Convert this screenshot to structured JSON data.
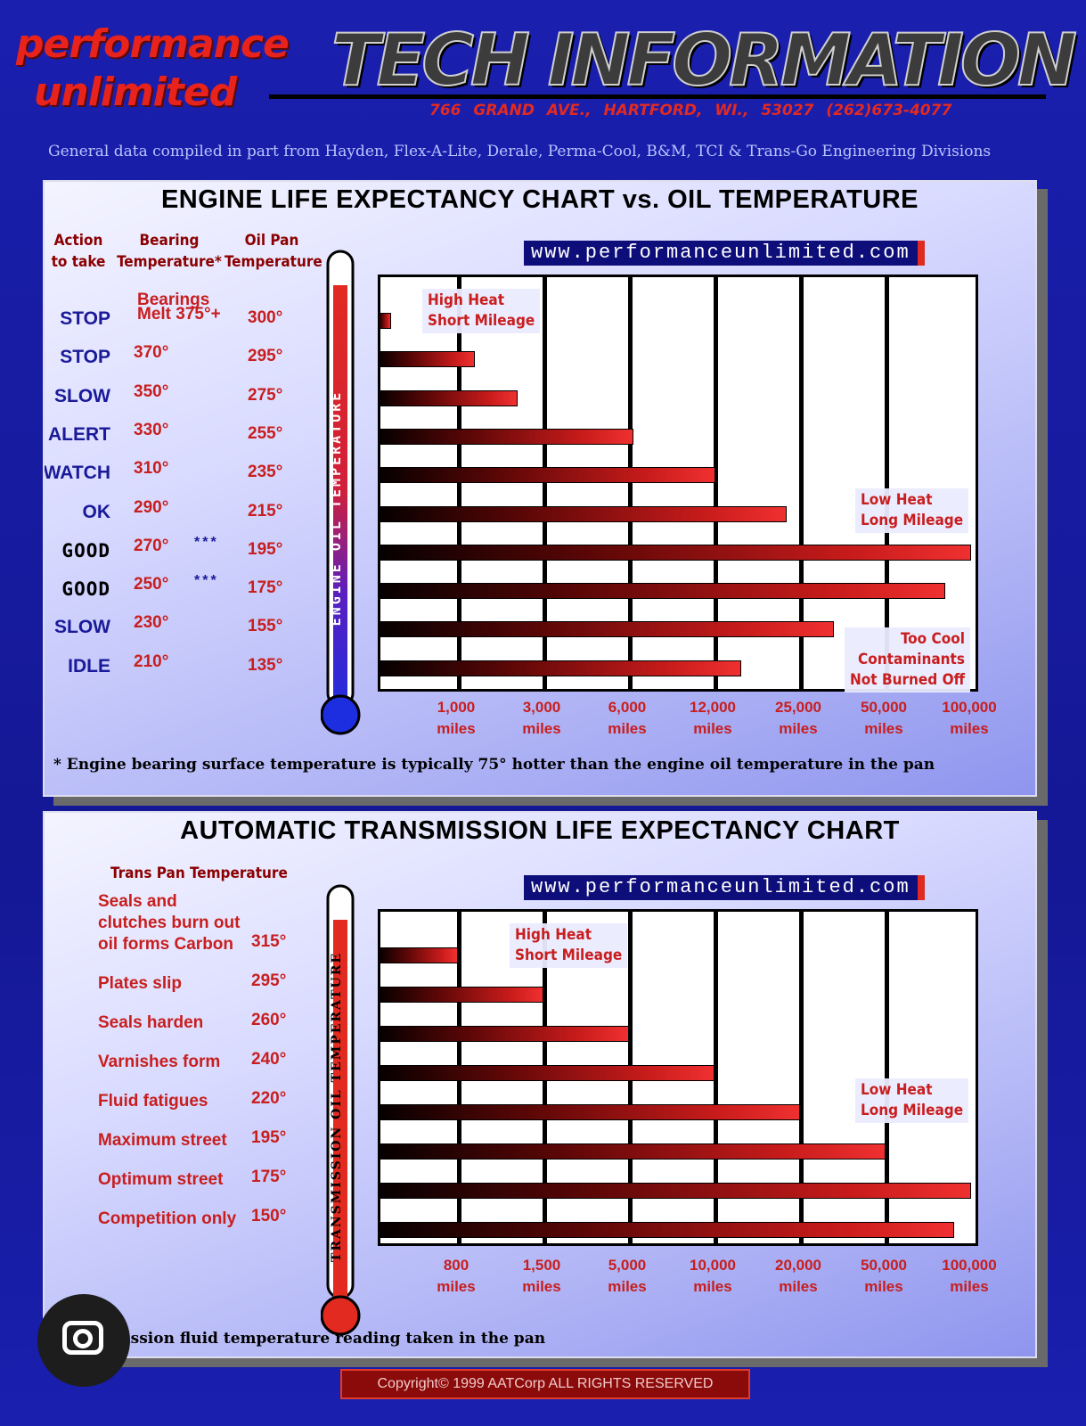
{
  "header": {
    "logo_line1": "performance",
    "logo_line2": "unlimited",
    "title": "TECH INFORMATION",
    "address": "766 GRAND  AVE.,  HARTFORD, WI.,  53027  (262)673-4077",
    "subtitle": "General data compiled in part from Hayden, Flex-A-Lite, Derale, Perma-Cool, B&M, TCI & Trans-Go Engineering Divisions"
  },
  "engine": {
    "title": "ENGINE LIFE EXPECTANCY CHART vs. OIL TEMPERATURE",
    "header_action": "Action\nto take",
    "header_bearing": "Bearing\nTemperature*",
    "header_oilpan": "Oil Pan\nTemperature",
    "bearings_line": "Bearings",
    "thermometer_label": "ENGINE OIL TEMPERATURE",
    "url": "www.performanceunlimited.com",
    "note_high": "High Heat\nShort Mileage",
    "note_low": "Low Heat\nLong Mileage",
    "note_cool": "Too Cool\nContaminants\nNot Burned Off",
    "stars": "***",
    "footnote": "* Engine bearing surface temperature is typically 75° hotter than the engine oil temperature in the pan"
  },
  "transmission": {
    "title": "AUTOMATIC TRANSMISSION LIFE EXPECTANCY CHART",
    "header_temp": "Trans Pan Temperature",
    "thermometer_label": "TRANSMISSION OIL TEMPERATURE",
    "url": "www.performanceunlimited.com",
    "note_high": "High Heat\nShort Mileage",
    "note_low": "Low Heat\nLong Mileage",
    "footnote": "*Transmission fluid temperature reading taken in the pan"
  },
  "copyright": "Copyright© 1999 AATCorp ALL RIGHTS RESERVED",
  "colors": {
    "background": "#161a9e",
    "accent_red": "#e22a21",
    "bar_red": "#c81b1b"
  },
  "chart_data": [
    {
      "type": "bar",
      "orientation": "horizontal",
      "title": "ENGINE LIFE EXPECTANCY CHART vs. OIL TEMPERATURE",
      "x_ticks": [
        {
          "label": "1,000\nmiles",
          "value": 1000
        },
        {
          "label": "3,000\nmiles",
          "value": 3000
        },
        {
          "label": "6,000\nmiles",
          "value": 6000
        },
        {
          "label": "12,000\nmiles",
          "value": 12000
        },
        {
          "label": "25,000\nmiles",
          "value": 25000
        },
        {
          "label": "50,000\nmiles",
          "value": 50000
        },
        {
          "label": "100,000\nmiles",
          "value": 100000
        }
      ],
      "rows": [
        {
          "action": "STOP",
          "bearing": "Melt 375°+",
          "oil_pan": "300°",
          "miles": 150,
          "bold": false
        },
        {
          "action": "STOP",
          "bearing": "370°",
          "oil_pan": "295°",
          "miles": 1400,
          "bold": false
        },
        {
          "action": "SLOW",
          "bearing": "350°",
          "oil_pan": "275°",
          "miles": 2400,
          "bold": false
        },
        {
          "action": "ALERT",
          "bearing": "330°",
          "oil_pan": "255°",
          "miles": 6300,
          "bold": false
        },
        {
          "action": "WATCH",
          "bearing": "310°",
          "oil_pan": "235°",
          "miles": 12200,
          "bold": false
        },
        {
          "action": "OK",
          "bearing": "290°",
          "oil_pan": "215°",
          "miles": 23000,
          "bold": false
        },
        {
          "action": "GOOD",
          "bearing": "270°",
          "oil_pan": "195°",
          "miles": 100000,
          "bold": true
        },
        {
          "action": "GOOD",
          "bearing": "250°",
          "oil_pan": "175°",
          "miles": 85000,
          "bold": true
        },
        {
          "action": "SLOW",
          "bearing": "230°",
          "oil_pan": "155°",
          "miles": 35000,
          "bold": false
        },
        {
          "action": "IDLE",
          "bearing": "210°",
          "oil_pan": "135°",
          "miles": 16000,
          "bold": false
        }
      ]
    },
    {
      "type": "bar",
      "orientation": "horizontal",
      "title": "AUTOMATIC TRANSMISSION LIFE EXPECTANCY CHART",
      "x_ticks": [
        {
          "label": "800\nmiles",
          "value": 800
        },
        {
          "label": "1,500\nmiles",
          "value": 1500
        },
        {
          "label": "5,000\nmiles",
          "value": 5000
        },
        {
          "label": "10,000\nmiles",
          "value": 10000
        },
        {
          "label": "20,000\nmiles",
          "value": 20000
        },
        {
          "label": "50,000\nmiles",
          "value": 50000
        },
        {
          "label": "100,000\nmiles",
          "value": 100000
        }
      ],
      "rows": [
        {
          "label": "Seals and\nclutches burn out\noil forms Carbon",
          "temp": "315°",
          "miles": 800
        },
        {
          "label": "Plates slip",
          "temp": "295°",
          "miles": 1500
        },
        {
          "label": "Seals harden",
          "temp": "260°",
          "miles": 5000
        },
        {
          "label": "Varnishes form",
          "temp": "240°",
          "miles": 10000
        },
        {
          "label": "Fluid fatigues",
          "temp": "220°",
          "miles": 20000
        },
        {
          "label": "Maximum street",
          "temp": "195°",
          "miles": 50000
        },
        {
          "label": "Optimum street",
          "temp": "175°",
          "miles": 100000
        },
        {
          "label": "Competition only",
          "temp": "150°",
          "miles": 90000
        }
      ]
    }
  ]
}
